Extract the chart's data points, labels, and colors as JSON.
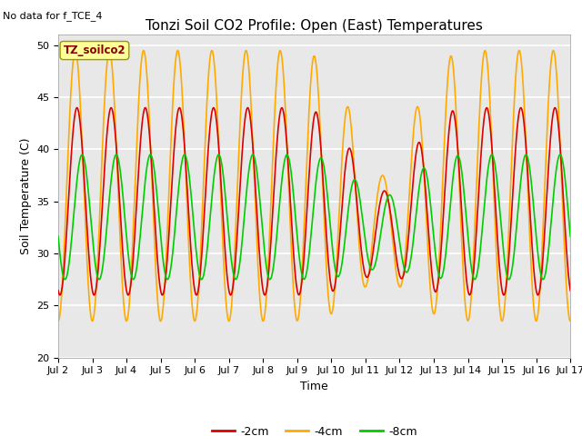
{
  "title": "Tonzi Soil CO2 Profile: Open (East) Temperatures",
  "subtitle": "No data for f_TCE_4",
  "ylabel": "Soil Temperature (C)",
  "xlabel": "Time",
  "xlim": [
    0,
    15
  ],
  "ylim": [
    20,
    51
  ],
  "yticks": [
    20,
    25,
    30,
    35,
    40,
    45,
    50
  ],
  "xtick_labels": [
    "Jul 2",
    "Jul 3",
    "Jul 4",
    "Jul 5",
    "Jul 6",
    "Jul 7",
    "Jul 8",
    "Jul 9",
    "Jul 10",
    "Jul 11",
    "Jul 12",
    "Jul 13",
    "Jul 14",
    "Jul 15",
    "Jul 16",
    "Jul 17"
  ],
  "legend_label": "TZ_soilco2",
  "series": {
    "neg2cm": {
      "label": "-2cm",
      "color": "#dd0000"
    },
    "neg4cm": {
      "label": "-4cm",
      "color": "#ffaa00"
    },
    "neg8cm": {
      "label": "-8cm",
      "color": "#00cc00"
    }
  },
  "plot_bg": "#e8e8e8",
  "title_fontsize": 11,
  "axis_fontsize": 9,
  "tick_fontsize": 8
}
